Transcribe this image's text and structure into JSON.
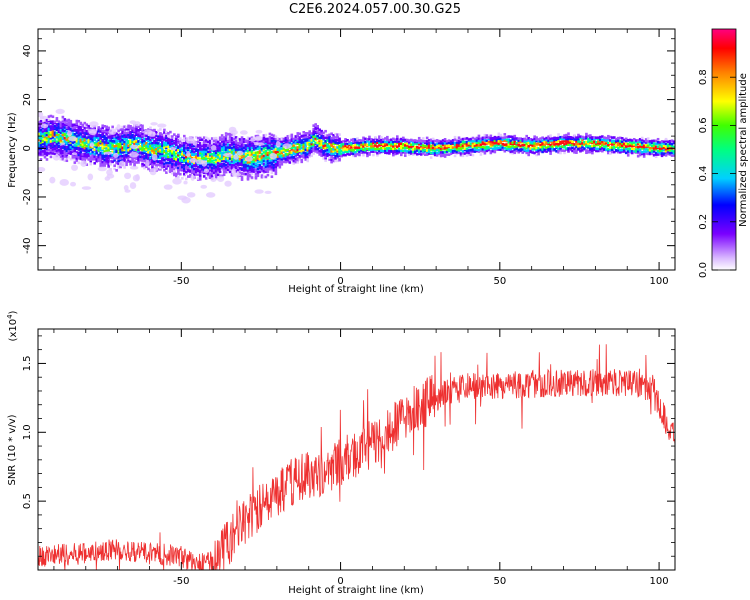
{
  "title": "C2E6.2024.057.00.30.G25",
  "chart_data": [
    {
      "type": "heatmap",
      "xlabel": "Height of straight line (km)",
      "ylabel": "Frequency (Hz)",
      "xlim": [
        -95,
        105
      ],
      "ylim": [
        -50,
        49
      ],
      "xticks": [
        -50,
        0,
        50,
        100
      ],
      "yticks": [
        -40,
        -20,
        0,
        20,
        40
      ],
      "ridge": [
        [
          -95,
          4
        ],
        [
          -90,
          5
        ],
        [
          -85,
          4
        ],
        [
          -80,
          2
        ],
        [
          -75,
          1
        ],
        [
          -70,
          0
        ],
        [
          -65,
          2
        ],
        [
          -60,
          0
        ],
        [
          -55,
          -1
        ],
        [
          -50,
          -3
        ],
        [
          -45,
          -4
        ],
        [
          -40,
          -4
        ],
        [
          -35,
          -2
        ],
        [
          -30,
          -4
        ],
        [
          -25,
          -3
        ],
        [
          -20,
          -2
        ],
        [
          -15,
          0
        ],
        [
          -10,
          1
        ],
        [
          -8,
          4
        ],
        [
          -5,
          1
        ],
        [
          0,
          0
        ],
        [
          10,
          1
        ],
        [
          20,
          1
        ],
        [
          30,
          0
        ],
        [
          40,
          1
        ],
        [
          50,
          2
        ],
        [
          60,
          1
        ],
        [
          70,
          2
        ],
        [
          80,
          2
        ],
        [
          90,
          1
        ],
        [
          100,
          0
        ],
        [
          105,
          0
        ]
      ],
      "colorbar": {
        "label": "Normalized spectral amplitude",
        "ticks": [
          "0.0",
          "0.2",
          "0.4",
          "0.6",
          "0.8"
        ],
        "range": [
          0,
          1
        ]
      }
    },
    {
      "type": "line",
      "xlabel": "Height of straight line (km)",
      "ylabel": "SNR (10 * v/v)",
      "scale_label": "(x10",
      "scale_exp": "4",
      "scale_close": ")",
      "xlim": [
        -95,
        105
      ],
      "ylim": [
        0,
        1.75
      ],
      "xticks": [
        -50,
        0,
        50,
        100
      ],
      "yticks": [
        "0.5",
        "1.0",
        "1.5"
      ],
      "color": "#ee3030",
      "series_envelope": [
        [
          -95,
          0.1
        ],
        [
          -80,
          0.12
        ],
        [
          -70,
          0.15
        ],
        [
          -60,
          0.12
        ],
        [
          -50,
          0.1
        ],
        [
          -45,
          0.04
        ],
        [
          -40,
          0.06
        ],
        [
          -35,
          0.2
        ],
        [
          -30,
          0.35
        ],
        [
          -25,
          0.45
        ],
        [
          -20,
          0.55
        ],
        [
          -15,
          0.65
        ],
        [
          -10,
          0.7
        ],
        [
          -5,
          0.72
        ],
        [
          0,
          0.78
        ],
        [
          5,
          0.85
        ],
        [
          10,
          0.92
        ],
        [
          15,
          1.0
        ],
        [
          20,
          1.1
        ],
        [
          25,
          1.2
        ],
        [
          30,
          1.25
        ],
        [
          35,
          1.3
        ],
        [
          40,
          1.33
        ],
        [
          50,
          1.34
        ],
        [
          60,
          1.35
        ],
        [
          70,
          1.36
        ],
        [
          80,
          1.36
        ],
        [
          90,
          1.36
        ],
        [
          98,
          1.32
        ],
        [
          101,
          1.15
        ],
        [
          103,
          1.02
        ],
        [
          105,
          1.0
        ]
      ]
    }
  ]
}
